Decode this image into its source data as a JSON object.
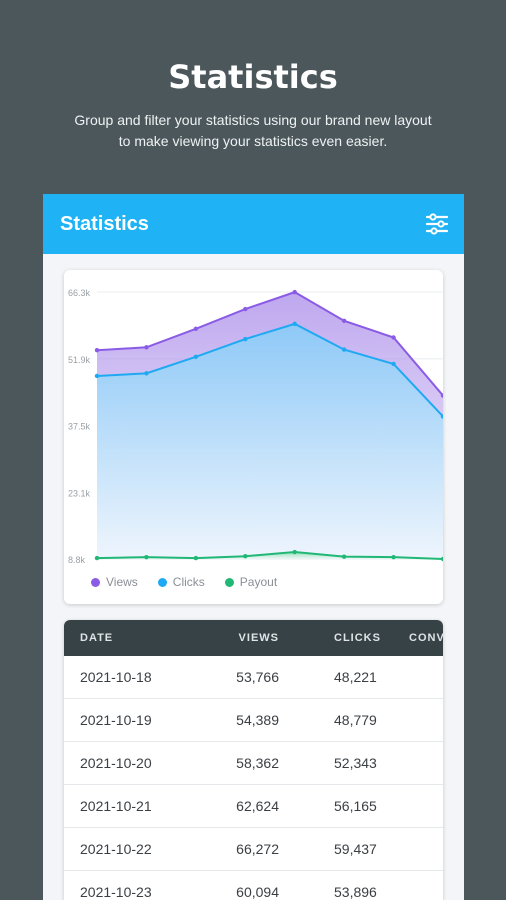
{
  "promo": {
    "title": "Statistics",
    "subtitle_line1": "Group and filter your statistics using our brand new layout",
    "subtitle_line2": "to make viewing your statistics even easier."
  },
  "appbar": {
    "title": "Statistics",
    "filter_icon": "sliders-icon"
  },
  "colors": {
    "views": "#8a5be6",
    "clicks": "#1fa9f2",
    "payout": "#21b877",
    "appbar": "#1fb3f5"
  },
  "chart_data": {
    "type": "area",
    "series": [
      {
        "name": "Views",
        "values": [
          53766,
          54389,
          58362,
          62624,
          66272,
          60094,
          56500,
          44000
        ]
      },
      {
        "name": "Clicks",
        "values": [
          48221,
          48779,
          52343,
          56165,
          59437,
          53896,
          50800,
          39500
        ]
      },
      {
        "name": "Payout",
        "values": [
          9000,
          9200,
          9000,
          9400,
          10300,
          9300,
          9200,
          8800
        ]
      }
    ],
    "ytick_labels": [
      "66.3k",
      "51.9k",
      "37.5k",
      "23.1k",
      "8.8k"
    ],
    "ytick_values": [
      66300,
      51900,
      37500,
      23100,
      8800
    ],
    "ylim": [
      8800,
      66300
    ],
    "grid": true,
    "legend": "bottom-left"
  },
  "table": {
    "headers": [
      "DATE",
      "VIEWS",
      "CLICKS",
      "CONV"
    ],
    "rows": [
      [
        "2021-10-18",
        "53,766",
        "48,221"
      ],
      [
        "2021-10-19",
        "54,389",
        "48,779"
      ],
      [
        "2021-10-20",
        "58,362",
        "52,343"
      ],
      [
        "2021-10-21",
        "62,624",
        "56,165"
      ],
      [
        "2021-10-22",
        "66,272",
        "59,437"
      ],
      [
        "2021-10-23",
        "60,094",
        "53,896"
      ]
    ]
  }
}
